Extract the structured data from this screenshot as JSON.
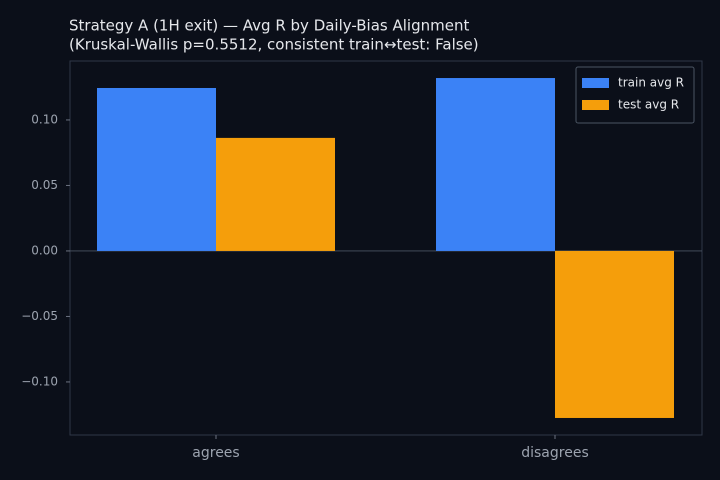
{
  "chart_data": {
    "type": "bar",
    "title": "Strategy A (1H exit) — Avg R by Daily-Bias Alignment",
    "subtitle": "(Kruskal-Wallis p=0.5512, consistent train↔test: False)",
    "categories": [
      "agrees",
      "disagrees"
    ],
    "series": [
      {
        "name": "train avg R",
        "color": "#3b82f6",
        "values": [
          0.1244,
          0.132
        ]
      },
      {
        "name": "test avg R",
        "color": "#f59e0b",
        "values": [
          0.0863,
          -0.1275
        ]
      }
    ],
    "ylim": [
      -0.1405,
      0.145
    ],
    "yticks": [
      {
        "value": -0.1,
        "label": "−0.10"
      },
      {
        "value": -0.05,
        "label": "−0.05"
      },
      {
        "value": 0,
        "label": "0.00"
      },
      {
        "value": 0.05,
        "label": "0.05"
      },
      {
        "value": 0.1,
        "label": "0.10"
      }
    ],
    "legend": "upper right"
  }
}
